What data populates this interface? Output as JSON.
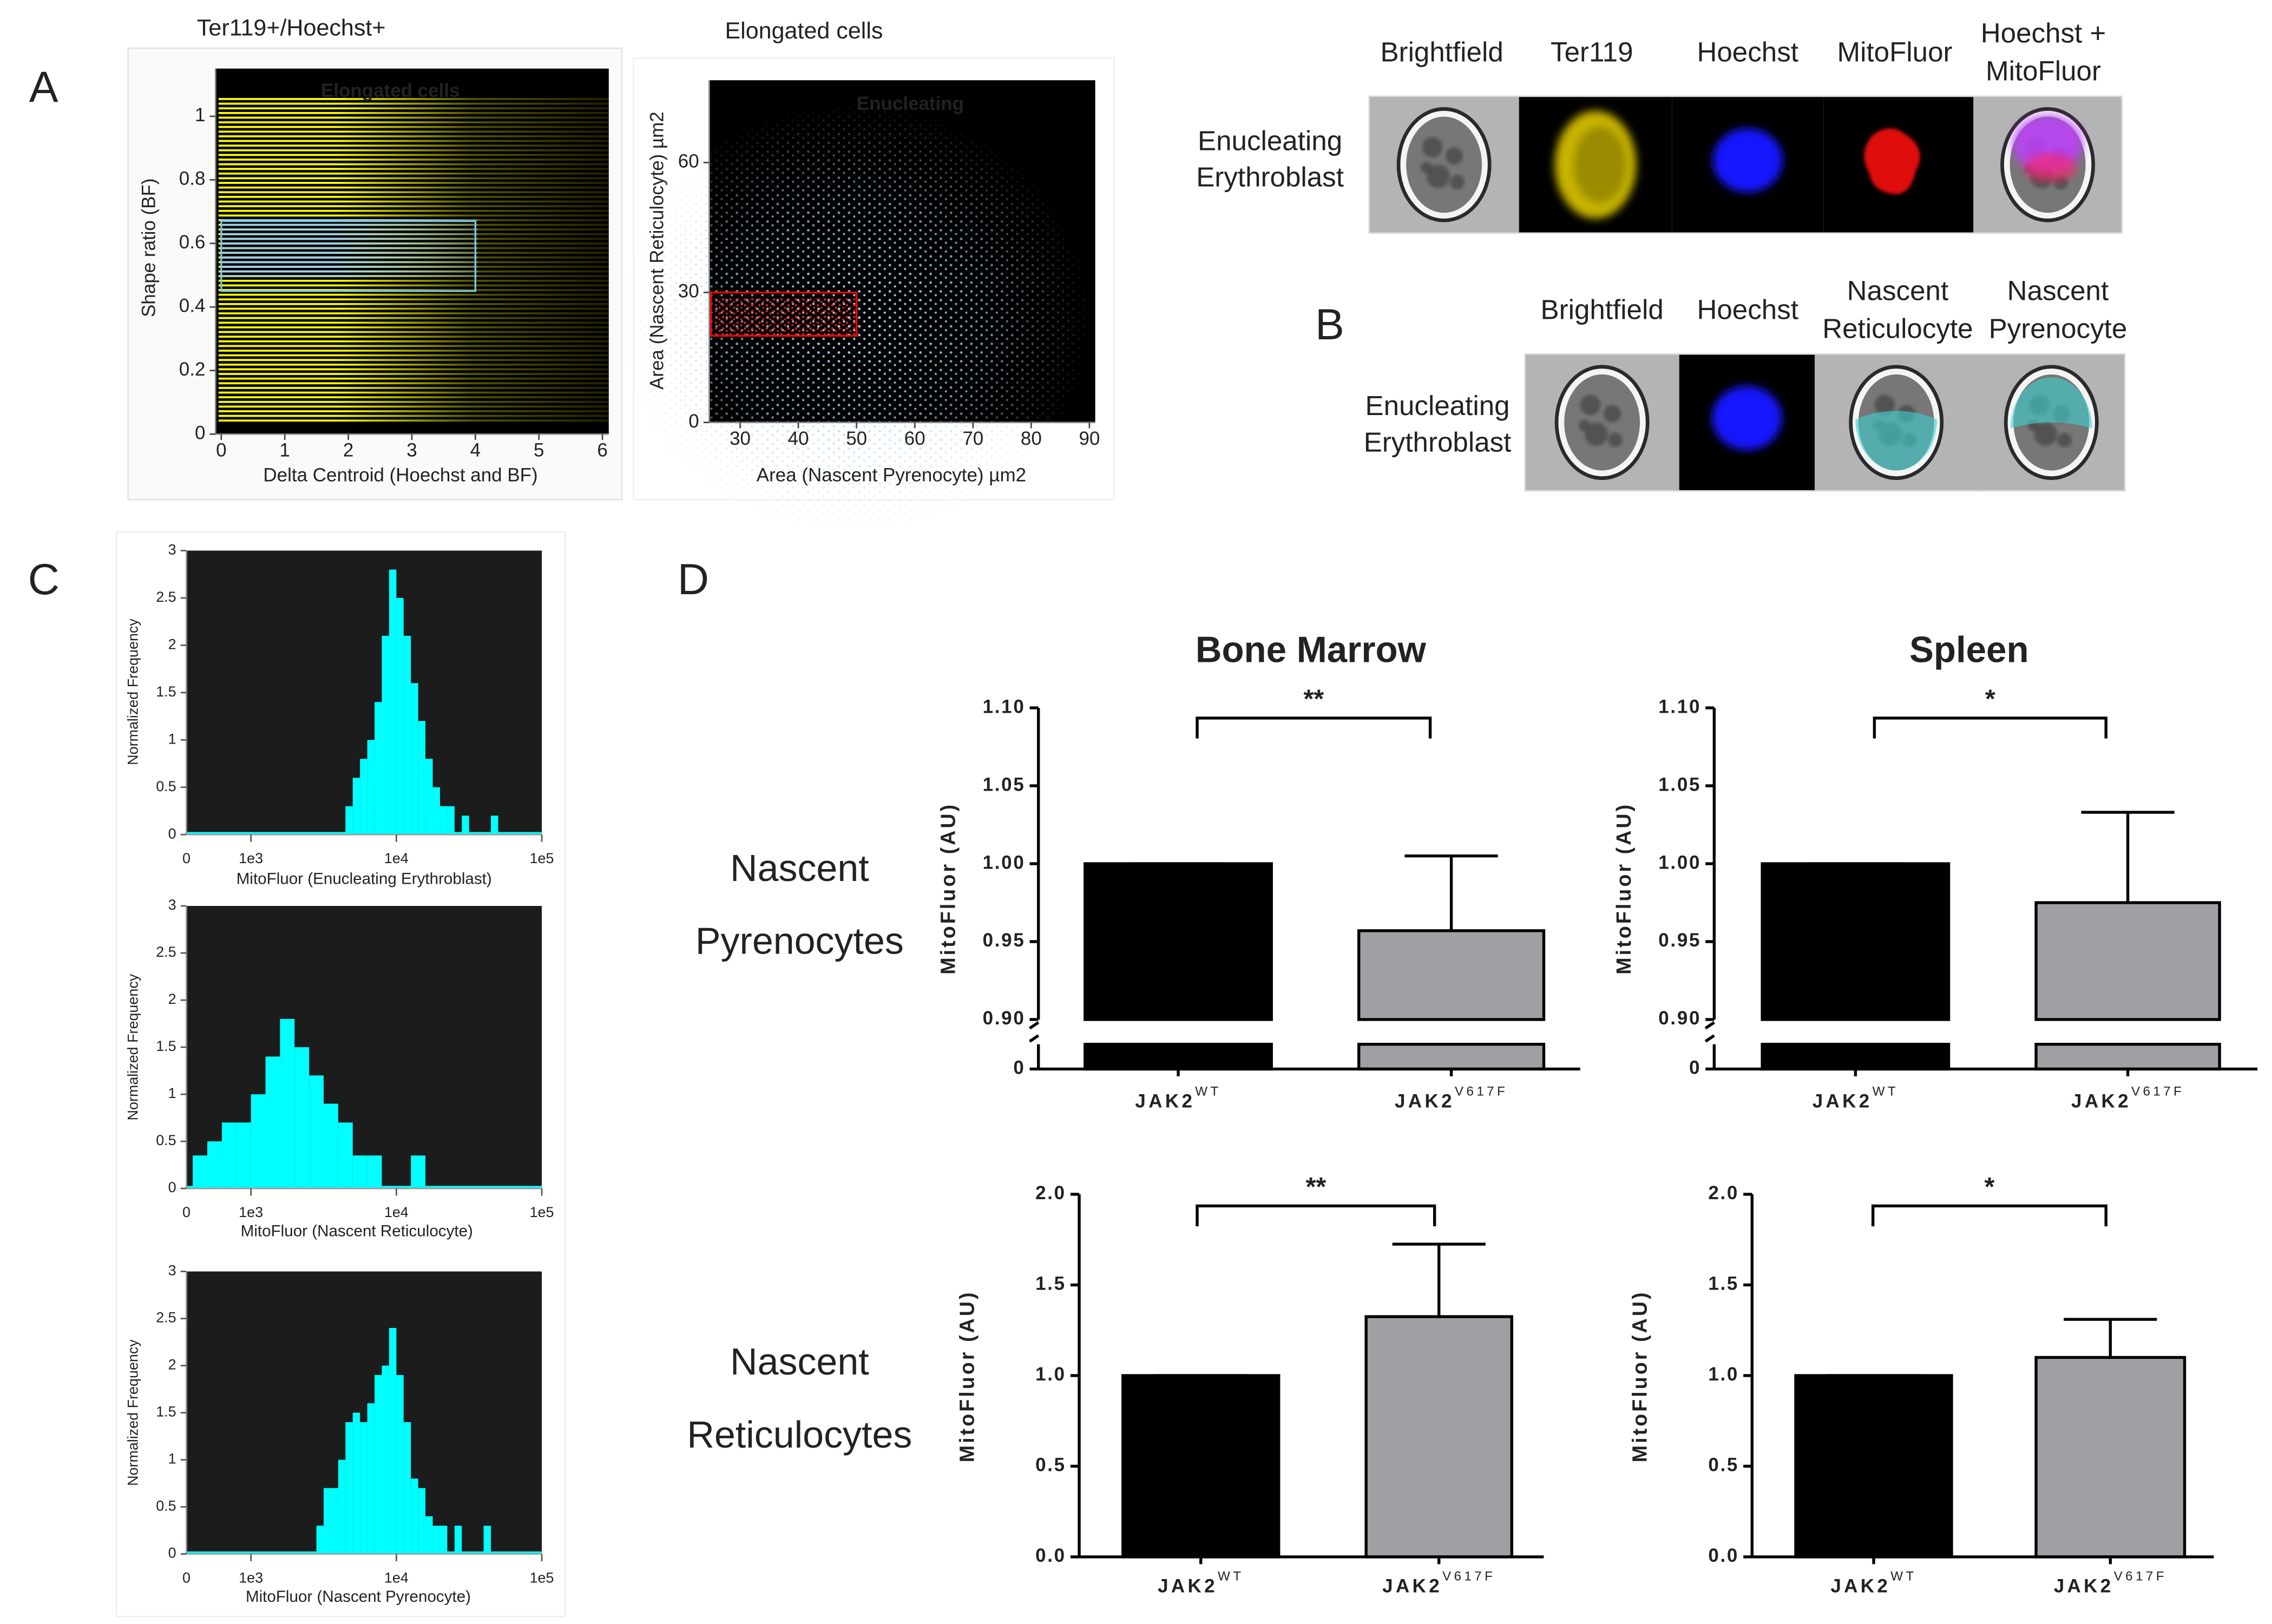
{
  "panel_labels": [
    "A",
    "B",
    "C",
    "D"
  ],
  "image_panels": [
    {
      "headers": [
        [
          "Brightfield"
        ],
        [
          "Ter119"
        ],
        [
          "Hoechst"
        ],
        [
          "MitoFluor"
        ],
        [
          "Hoechst +",
          "MitoFluor"
        ]
      ],
      "row_label": [
        "Enucleating",
        "Erythroblast"
      ]
    },
    {
      "headers": [
        [
          "Brightfield"
        ],
        [
          "Hoechst"
        ],
        [
          "Nascent",
          "Reticulocyte"
        ],
        [
          "Nascent",
          "Pyrenocyte"
        ]
      ],
      "row_label": [
        "Enucleating",
        "Erythroblast"
      ]
    }
  ],
  "row_labels": [
    [
      "Nascent",
      "Pyrenocytes"
    ],
    [
      "Nascent",
      "Reticulocytes"
    ]
  ],
  "chart_data": [
    {
      "type": "scatter",
      "title": "Ter119+/Hoechst+",
      "x_label": "Delta Centroid (Hoechst and BF)",
      "y_label": "Shape ratio (BF)",
      "xlim": [
        -0.09,
        6.1
      ],
      "ylim": [
        0,
        1.15
      ],
      "xticks": [
        0,
        1,
        2,
        3,
        4,
        5,
        6
      ],
      "yticks": [
        0,
        0.2,
        0.4,
        0.6,
        0.8,
        1
      ],
      "color": "#ffff00",
      "gate": {
        "label": "Elongated cells",
        "x": [
          0,
          4
        ],
        "y": [
          0.45,
          0.67
        ],
        "color": "#7ec8e3"
      }
    },
    {
      "type": "scatter",
      "title": "Elongated cells",
      "x_label": "Area (Nascent Pyrenocyte) µm2",
      "y_label": "Area (Nascent Reticulocyte) µm2",
      "xlim": [
        24.7,
        91
      ],
      "ylim": [
        0,
        79
      ],
      "xticks": [
        30,
        40,
        50,
        60,
        70,
        80,
        90
      ],
      "yticks": [
        0,
        30,
        60
      ],
      "color": "#a8dcf5",
      "gate": {
        "label": "Enucleating",
        "x": [
          25,
          50
        ],
        "y": [
          20,
          30
        ],
        "color": "#ff0000"
      }
    },
    {
      "type": "histogram",
      "x_label": "MitoFluor (Enucleating Erythroblast)",
      "y_label": "Normalized Frequency",
      "log_x": true,
      "xlim": [
        360,
        100000
      ],
      "x_origin_label": "0",
      "xticks": [
        {
          "value": 1000,
          "label": "1e3"
        },
        {
          "value": 10000,
          "label": "1e4"
        },
        {
          "value": 100000,
          "label": "1e5"
        }
      ],
      "ylim": [
        0,
        3
      ],
      "yticks": [
        0,
        0.5,
        1,
        1.5,
        2,
        2.5,
        3
      ],
      "color": "#00ffff",
      "bins": [
        3981,
        4467,
        5012,
        5623,
        6310,
        7079,
        7943,
        8913,
        10000,
        11220,
        12589,
        14125,
        15849,
        17783,
        19953,
        22387,
        25119,
        28184,
        31623,
        35481,
        39811,
        44668,
        50119,
        56234,
        63096
      ],
      "counts": [
        0,
        0.3,
        0.6,
        0.8,
        1.0,
        1.4,
        2.1,
        2.8,
        2.5,
        2.1,
        1.6,
        1.2,
        0.8,
        0.5,
        0.3,
        0.3,
        0,
        0.2,
        0,
        0,
        0,
        0.2,
        0,
        0
      ]
    },
    {
      "type": "histogram",
      "x_label": "MitoFluor (Nascent Reticulocyte)",
      "y_label": "Normalized Frequency",
      "log_x": true,
      "xlim": [
        360,
        100000
      ],
      "x_origin_label": "0",
      "xticks": [
        {
          "value": 1000,
          "label": "1e3"
        },
        {
          "value": 10000,
          "label": "1e4"
        },
        {
          "value": 100000,
          "label": "1e5"
        }
      ],
      "ylim": [
        0,
        3
      ],
      "yticks": [
        0,
        0.5,
        1,
        1.5,
        2,
        2.5,
        3
      ],
      "color": "#00ffff",
      "bins": [
        398,
        501,
        631,
        794,
        1000,
        1259,
        1585,
        1995,
        2512,
        3162,
        3981,
        5012,
        6310,
        7943,
        10000,
        12589,
        15849,
        19953
      ],
      "counts": [
        0.35,
        0.5,
        0.7,
        0.7,
        1.0,
        1.4,
        1.8,
        1.5,
        1.2,
        0.9,
        0.7,
        0.35,
        0.35,
        0,
        0,
        0.35,
        0
      ]
    },
    {
      "type": "histogram",
      "x_label": "MitoFluor (Nascent Pyrenocyte)",
      "y_label": "Normalized Frequency",
      "log_x": true,
      "xlim": [
        360,
        100000
      ],
      "x_origin_label": "0",
      "xticks": [
        {
          "value": 1000,
          "label": "1e3"
        },
        {
          "value": 10000,
          "label": "1e4"
        },
        {
          "value": 100000,
          "label": "1e5"
        }
      ],
      "ylim": [
        0,
        3
      ],
      "yticks": [
        0,
        0.5,
        1,
        1.5,
        2,
        2.5,
        3
      ],
      "color": "#00ffff",
      "bins": [
        2818,
        3162,
        3548,
        3981,
        4467,
        5012,
        5623,
        6310,
        7079,
        7943,
        8913,
        10000,
        11220,
        12589,
        14125,
        15849,
        17783,
        19953,
        22387,
        25119,
        28184,
        31623,
        35481,
        39811,
        44668
      ],
      "counts": [
        0.3,
        0.7,
        0.7,
        1.0,
        1.4,
        1.5,
        1.4,
        1.6,
        1.9,
        2.0,
        2.4,
        1.9,
        1.4,
        0.8,
        0.7,
        0.4,
        0.3,
        0.3,
        0,
        0.3,
        0,
        0,
        0,
        0.3
      ]
    },
    {
      "type": "bar",
      "title": "Bone Marrow",
      "y_label": "MitoFluor (AU)",
      "categories": [
        "JAK2",
        "JAK2"
      ],
      "category_superscripts": [
        "WT",
        "V617F"
      ],
      "values": [
        1.0,
        0.957
      ],
      "errors": [
        0,
        0.048
      ],
      "colors": [
        "#000000",
        "#a0a0a4"
      ],
      "ylim": [
        0,
        1.1
      ],
      "ybreak": [
        0.1,
        0.9
      ],
      "yticks": [
        0,
        {
          "value": 0.9,
          "label": "0.90"
        },
        0.95,
        {
          "value": 1,
          "label": "1.00"
        },
        1.05,
        {
          "value": 1.1,
          "label": "1.10"
        }
      ],
      "significance": "**"
    },
    {
      "type": "bar",
      "title": "Spleen",
      "y_label": "MitoFluor (AU)",
      "categories": [
        "JAK2",
        "JAK2"
      ],
      "category_superscripts": [
        "WT",
        "V617F"
      ],
      "values": [
        1.0,
        0.975
      ],
      "errors": [
        0,
        0.058
      ],
      "colors": [
        "#000000",
        "#a0a0a4"
      ],
      "ylim": [
        0,
        1.1
      ],
      "ybreak": [
        0.1,
        0.9
      ],
      "yticks": [
        0,
        {
          "value": 0.9,
          "label": "0.90"
        },
        0.95,
        {
          "value": 1,
          "label": "1.00"
        },
        1.05,
        {
          "value": 1.1,
          "label": "1.10"
        }
      ],
      "significance": "*"
    },
    {
      "type": "bar",
      "y_label": "MitoFluor (AU)",
      "categories": [
        "JAK2",
        "JAK2"
      ],
      "category_superscripts": [
        "WT",
        "V617F"
      ],
      "values": [
        1.0,
        1.325
      ],
      "errors": [
        0,
        0.4
      ],
      "colors": [
        "#000000",
        "#a0a0a4"
      ],
      "ylim": [
        0,
        2
      ],
      "yticks": [
        {
          "value": 0,
          "label": "0.0"
        },
        0.5,
        {
          "value": 1,
          "label": "1.0"
        },
        1.5,
        {
          "value": 2,
          "label": "2.0"
        }
      ],
      "significance": "**"
    },
    {
      "type": "bar",
      "y_label": "MitoFluor (AU)",
      "categories": [
        "JAK2",
        "JAK2"
      ],
      "category_superscripts": [
        "WT",
        "V617F"
      ],
      "values": [
        1.0,
        1.1
      ],
      "errors": [
        0,
        0.21
      ],
      "colors": [
        "#000000",
        "#a0a0a4"
      ],
      "ylim": [
        0,
        2
      ],
      "yticks": [
        {
          "value": 0,
          "label": "0.0"
        },
        0.5,
        {
          "value": 1,
          "label": "1.0"
        },
        1.5,
        {
          "value": 2,
          "label": "2.0"
        }
      ],
      "significance": "*"
    }
  ]
}
